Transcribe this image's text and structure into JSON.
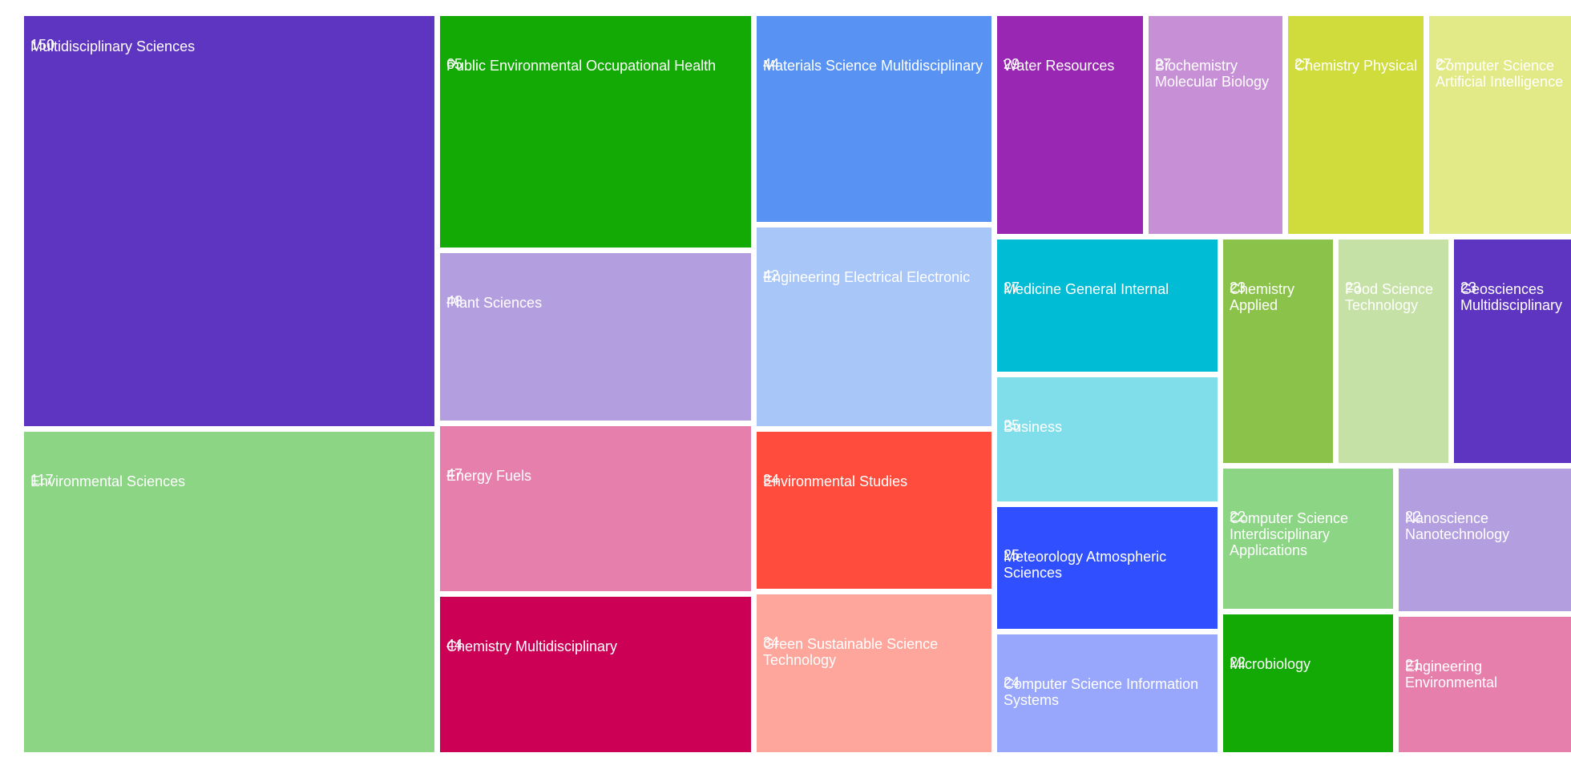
{
  "chart_data": {
    "type": "treemap",
    "title": "",
    "nodes": [
      {
        "name": "Multidisciplinary Sciences",
        "value": 150,
        "color": "#5e35c0"
      },
      {
        "name": "Environmental Sciences",
        "value": 117,
        "color": "#8bd584"
      },
      {
        "name": "Public Environmental Occupational Health",
        "value": 65,
        "color": "#14aa06"
      },
      {
        "name": "Plant Sciences",
        "value": 48,
        "color": "#b39fe0"
      },
      {
        "name": "Energy Fuels",
        "value": 47,
        "color": "#e67fab"
      },
      {
        "name": "Chemistry Multidisciplinary",
        "value": 44,
        "color": "#cc0055"
      },
      {
        "name": "Materials Science Multidisciplinary",
        "value": 44,
        "color": "#5893f4"
      },
      {
        "name": "Engineering Electrical Electronic",
        "value": 42,
        "color": "#a8c6f8"
      },
      {
        "name": "Environmental Studies",
        "value": 34,
        "color": "#ff4c3c"
      },
      {
        "name": "Green Sustainable Science Technology",
        "value": 34,
        "color": "#ffa69c"
      },
      {
        "name": "Water Resources",
        "value": 29,
        "color": "#9a27b4"
      },
      {
        "name": "Biochemistry Molecular Biology",
        "value": 27,
        "color": "#c78fd6"
      },
      {
        "name": "Chemistry Physical",
        "value": 27,
        "color": "#cfdc3c"
      },
      {
        "name": "Computer Science Artificial Intelligence",
        "value": 27,
        "color": "#e2ea88"
      },
      {
        "name": "Medicine General Internal",
        "value": 27,
        "color": "#00bcd4"
      },
      {
        "name": "Business",
        "value": 25,
        "color": "#80deea"
      },
      {
        "name": "Meteorology Atmospheric Sciences",
        "value": 25,
        "color": "#3050ff"
      },
      {
        "name": "Computer Science Information Systems",
        "value": 24,
        "color": "#98a6fc"
      },
      {
        "name": "Chemistry Applied",
        "value": 23,
        "color": "#8bc34a"
      },
      {
        "name": "Food Science Technology",
        "value": 23,
        "color": "#c5e1a5"
      },
      {
        "name": "Geosciences Multidisciplinary",
        "value": 23,
        "color": "#5e35c0"
      },
      {
        "name": "Computer Science Interdisciplinary Applications",
        "value": 22,
        "color": "#8bd584"
      },
      {
        "name": "Microbiology",
        "value": 22,
        "color": "#14aa06"
      },
      {
        "name": "Nanoscience Nanotechnology",
        "value": 22,
        "color": "#b39fe0"
      },
      {
        "name": "Engineering Environmental",
        "value": 21,
        "color": "#e67fab"
      }
    ]
  }
}
